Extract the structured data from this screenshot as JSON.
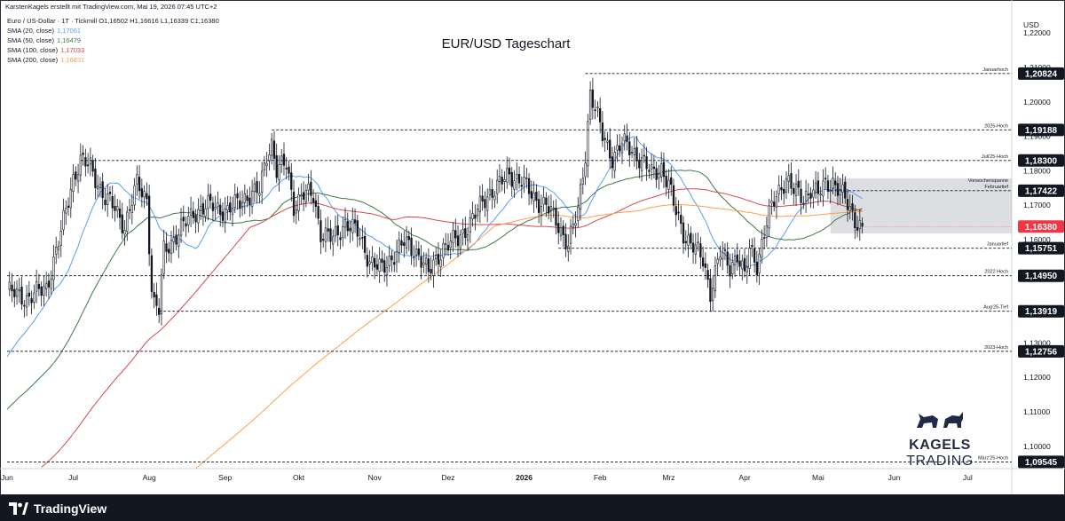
{
  "header": {
    "creator_line": "KarstenKagels erstellt mit TradingView.com, Mai 19, 2026 07:45 UTC+2",
    "symbol_line": "Euro / US-Dollar · 1T · Tickmill  O1,16502  H1,16616  L1,16339  C1,16380"
  },
  "indicators": [
    {
      "label": "SMA (20, close)",
      "value": "1,17061",
      "color": "#5b9cf6"
    },
    {
      "label": "SMA (50, close)",
      "value": "1,16479",
      "color": "#3d7a46"
    },
    {
      "label": "SMA (100, close)",
      "value": "1,17033",
      "color": "#d6484d"
    },
    {
      "label": "SMA (200, close)",
      "value": "1,16831",
      "color": "#ff9f4a"
    }
  ],
  "chart_title": "EUR/USD Tageschart",
  "brand": {
    "word1": "KAGELS",
    "word2": "TRADING"
  },
  "footer": {
    "logo_text": "TradingView"
  },
  "chart_data": {
    "type": "candlestick",
    "currency": "USD",
    "ylim": [
      1.0935,
      1.2265
    ],
    "y_ticks": [
      "1,22000",
      "1,21000",
      "1,20000",
      "1,19000",
      "1,18000",
      "1,17000",
      "1,16000",
      "1,15000",
      "1,14000",
      "1,13000",
      "1,12000",
      "1,11000",
      "1,10000"
    ],
    "x_labels": [
      {
        "label": "Jun",
        "day": 0
      },
      {
        "label": "Jul",
        "day": 27
      },
      {
        "label": "Aug",
        "day": 58
      },
      {
        "label": "Sep",
        "day": 89
      },
      {
        "label": "Okt",
        "day": 119
      },
      {
        "label": "Nov",
        "day": 150
      },
      {
        "label": "Dez",
        "day": 180
      },
      {
        "label": "2026",
        "day": 211
      },
      {
        "label": "Feb",
        "day": 242
      },
      {
        "label": "Mrz",
        "day": 270
      },
      {
        "label": "Apr",
        "day": 301
      },
      {
        "label": "Mai",
        "day": 331
      },
      {
        "label": "Jun",
        "day": 362
      },
      {
        "label": "Jul",
        "day": 392
      }
    ],
    "x_max_day": 410,
    "current_price": {
      "label": "1,16380",
      "value": 1.1638,
      "color": "#f23645"
    },
    "levels": [
      {
        "name": "Januarhoch",
        "value": 1.20824,
        "label": "1,20824",
        "start_day": 236
      },
      {
        "name": "2025-Hoch",
        "value": 1.19188,
        "label": "1,19188",
        "start_day": 108
      },
      {
        "name": "Juli'25-Hoch",
        "value": 1.183,
        "label": "1,18300",
        "start_day": 30
      },
      {
        "name": "Februartief",
        "value": 1.17422,
        "label": "1,17422",
        "start_day": 336
      },
      {
        "name": "Januartief",
        "value": 1.15751,
        "label": "1,15751",
        "start_day": 225
      },
      {
        "name": "2022 Hoch",
        "value": 1.1495,
        "label": "1,14950",
        "start_day": 0
      },
      {
        "name": "Aug'25-Tief",
        "value": 1.13919,
        "label": "1,13919",
        "start_day": 62
      },
      {
        "name": "2023-Hoch",
        "value": 1.12756,
        "label": "1,12756",
        "start_day": 0
      },
      {
        "name": "März'25-Hoch",
        "value": 1.09545,
        "label": "1,09545",
        "start_day": 0
      }
    ],
    "range_box": {
      "name": "Vorwochenspanne",
      "top": 1.1778,
      "bottom": 1.1618,
      "start_day": 336,
      "end_day": 351
    },
    "anchors": [
      [
        0,
        1.145
      ],
      [
        8,
        1.143
      ],
      [
        16,
        1.146
      ],
      [
        22,
        1.162
      ],
      [
        27,
        1.178
      ],
      [
        30,
        1.183
      ],
      [
        34,
        1.181
      ],
      [
        40,
        1.172
      ],
      [
        44,
        1.169
      ],
      [
        48,
        1.164
      ],
      [
        53,
        1.176
      ],
      [
        57,
        1.172
      ],
      [
        59,
        1.146
      ],
      [
        60,
        1.141
      ],
      [
        62,
        1.1392
      ],
      [
        64,
        1.157
      ],
      [
        70,
        1.162
      ],
      [
        76,
        1.168
      ],
      [
        84,
        1.17
      ],
      [
        90,
        1.168
      ],
      [
        96,
        1.172
      ],
      [
        103,
        1.174
      ],
      [
        106,
        1.185
      ],
      [
        108,
        1.188
      ],
      [
        110,
        1.18
      ],
      [
        114,
        1.182
      ],
      [
        117,
        1.17
      ],
      [
        121,
        1.173
      ],
      [
        125,
        1.173
      ],
      [
        128,
        1.162
      ],
      [
        133,
        1.16
      ],
      [
        138,
        1.165
      ],
      [
        143,
        1.162
      ],
      [
        148,
        1.154
      ],
      [
        153,
        1.151
      ],
      [
        158,
        1.156
      ],
      [
        162,
        1.159
      ],
      [
        168,
        1.156
      ],
      [
        172,
        1.15
      ],
      [
        178,
        1.158
      ],
      [
        184,
        1.16
      ],
      [
        190,
        1.166
      ],
      [
        196,
        1.173
      ],
      [
        201,
        1.176
      ],
      [
        205,
        1.179
      ],
      [
        210,
        1.177
      ],
      [
        215,
        1.172
      ],
      [
        220,
        1.17
      ],
      [
        225,
        1.164
      ],
      [
        229,
        1.159
      ],
      [
        233,
        1.168
      ],
      [
        236,
        1.185
      ],
      [
        238,
        1.203
      ],
      [
        240,
        1.198
      ],
      [
        243,
        1.19
      ],
      [
        247,
        1.184
      ],
      [
        251,
        1.188
      ],
      [
        255,
        1.186
      ],
      [
        259,
        1.183
      ],
      [
        263,
        1.179
      ],
      [
        267,
        1.181
      ],
      [
        270,
        1.176
      ],
      [
        272,
        1.17
      ],
      [
        276,
        1.162
      ],
      [
        280,
        1.158
      ],
      [
        284,
        1.154
      ],
      [
        287,
        1.145
      ],
      [
        291,
        1.156
      ],
      [
        295,
        1.152
      ],
      [
        298,
        1.156
      ],
      [
        301,
        1.149
      ],
      [
        303,
        1.157
      ],
      [
        306,
        1.153
      ],
      [
        310,
        1.165
      ],
      [
        314,
        1.173
      ],
      [
        318,
        1.178
      ],
      [
        321,
        1.174
      ],
      [
        325,
        1.172
      ],
      [
        328,
        1.175
      ],
      [
        331,
        1.173
      ],
      [
        334,
        1.176
      ],
      [
        337,
        1.177
      ],
      [
        340,
        1.174
      ],
      [
        343,
        1.17
      ],
      [
        346,
        1.166
      ],
      [
        349,
        1.1638
      ]
    ]
  }
}
